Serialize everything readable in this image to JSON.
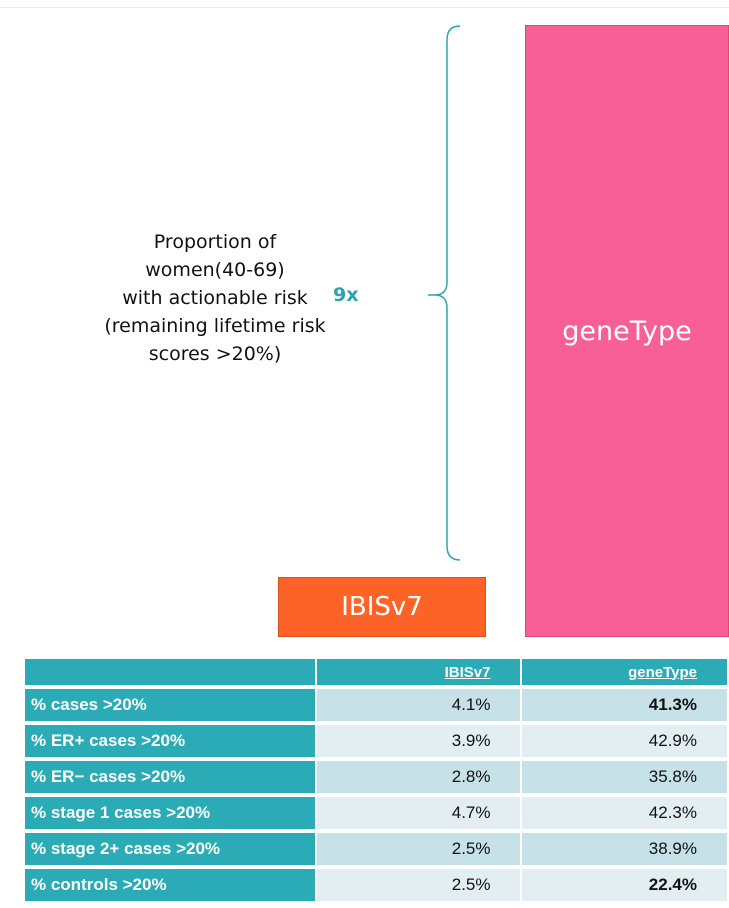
{
  "description": [
    "Proportion of",
    "women(40-69)",
    "with actionable risk",
    "(remaining lifetime risk",
    "scores >20%)"
  ],
  "ratio": "9x",
  "boxes": [
    "IBISv7",
    "geneType"
  ],
  "table": {
    "columns": [
      "IBISv7",
      "geneType"
    ],
    "rows": [
      [
        "% cases >20%",
        "4.1%",
        "41.3%"
      ],
      [
        "% ER+ cases >20%",
        "3.9%",
        "42.9%"
      ],
      [
        "% ER− cases >20%",
        "2.8%",
        "35.8%"
      ],
      [
        "% stage 1 cases >20%",
        "4.7%",
        "42.3%"
      ],
      [
        "% stage 2+ cases >20%",
        "2.5%",
        "38.9%"
      ],
      [
        "% controls >20%",
        "2.5%",
        "22.4%"
      ]
    ]
  }
}
